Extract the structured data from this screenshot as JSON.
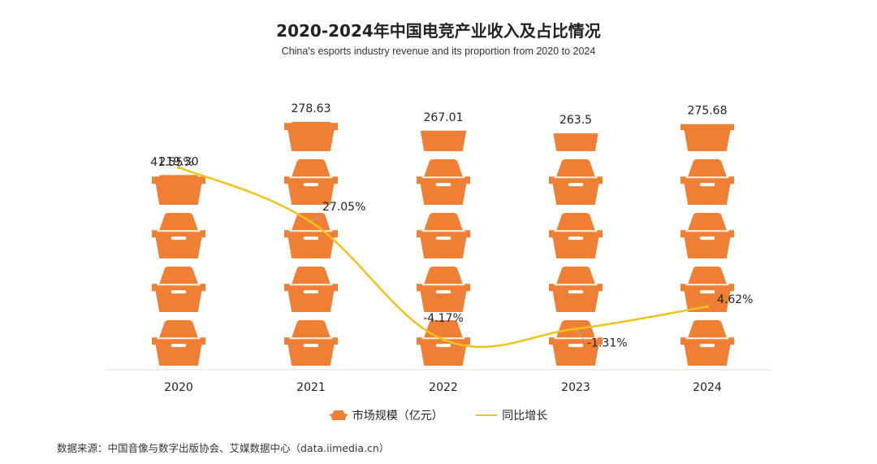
{
  "title": "2020-2024年中国电竞产业收入及占比情况",
  "subtitle": "China's esports industry revenue and its proportion from 2020 to 2024",
  "legend": {
    "bar_label": "市场规模（亿元）",
    "line_label": "同比增长"
  },
  "source": "数据来源：中国音像与数字出版协会、艾媒数据中心（data.iimedia.cn）",
  "colors": {
    "bar": "#ef7f34",
    "bar_detail": "#ffffff",
    "line": "#f2c11a",
    "axis": "#dddddd",
    "leader": "#aaaaaa"
  },
  "chart_data": {
    "type": "bar",
    "title": "2020-2024年中国电竞产业收入及占比情况",
    "categories": [
      "2020",
      "2021",
      "2022",
      "2023",
      "2024"
    ],
    "series": [
      {
        "name": "市场规模（亿元）",
        "type": "bar",
        "values": [
          219.3,
          278.63,
          267.01,
          263.5,
          275.68
        ],
        "labels": [
          "219.30",
          "278.63",
          "267.01",
          "263.5",
          "275.68"
        ],
        "unit_per_icon": 60
      },
      {
        "name": "同比增长",
        "type": "line",
        "values": [
          41.55,
          27.05,
          -4.17,
          -1.31,
          4.62
        ],
        "labels": [
          "41.55%",
          "27.05%",
          "-4.17%",
          "-1.31%",
          "4.62%"
        ]
      }
    ],
    "ylim": [
      0,
      300
    ],
    "y2lim": [
      -10,
      45
    ]
  }
}
